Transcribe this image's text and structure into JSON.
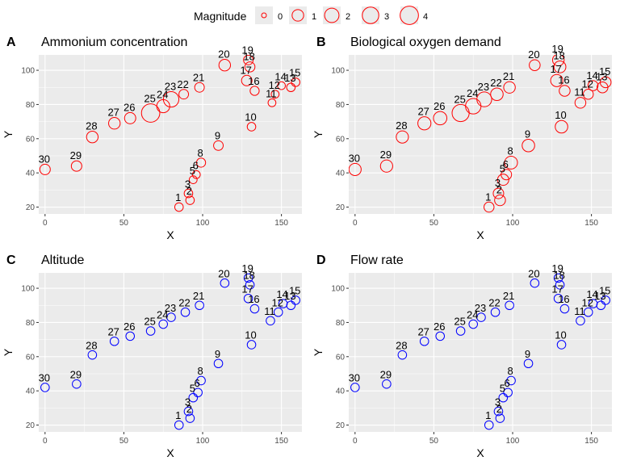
{
  "legend": {
    "title": "Magnitude",
    "entries": [
      {
        "label": "0",
        "value": 0
      },
      {
        "label": "1",
        "value": 1
      },
      {
        "label": "2",
        "value": 2
      },
      {
        "label": "3",
        "value": 3
      },
      {
        "label": "4",
        "value": 4
      }
    ],
    "placement": "top"
  },
  "colors": {
    "panel_bg": "#EBEBEB",
    "grid": "#FFFFFF",
    "red": "#FF0000",
    "blue": "#0000FF",
    "text": "#000000",
    "tick_text": "#4D4D4D"
  },
  "chart_data": [
    {
      "type": "scatter",
      "tag": "A",
      "title": "Ammonium concentration",
      "xlabel": "X",
      "ylabel": "Y",
      "xlim": [
        -4,
        163
      ],
      "ylim": [
        16,
        109
      ],
      "xticks": [
        0,
        50,
        100,
        150
      ],
      "yticks": [
        20,
        40,
        60,
        80,
        100
      ],
      "grid": true,
      "marker_color": "#FF0000",
      "points": [
        {
          "label": "1",
          "x": 85,
          "y": 20,
          "m": 0.3
        },
        {
          "label": "2",
          "x": 92,
          "y": 24,
          "m": 0.3
        },
        {
          "label": "3",
          "x": 91,
          "y": 28,
          "m": 0.3
        },
        {
          "label": "5",
          "x": 94,
          "y": 36,
          "m": 0.2
        },
        {
          "label": "6",
          "x": 96,
          "y": 39,
          "m": 0.2
        },
        {
          "label": "8",
          "x": 99,
          "y": 46,
          "m": 0.4
        },
        {
          "label": "9",
          "x": 110,
          "y": 56,
          "m": 0.5
        },
        {
          "label": "10",
          "x": 131,
          "y": 67,
          "m": 0.3
        },
        {
          "label": "11",
          "x": 144,
          "y": 81,
          "m": 0.2
        },
        {
          "label": "12",
          "x": 146,
          "y": 86,
          "m": 0.2
        },
        {
          "label": "13",
          "x": 156,
          "y": 90,
          "m": 0.3
        },
        {
          "label": "14",
          "x": 150,
          "y": 91,
          "m": 0.2
        },
        {
          "label": "15",
          "x": 159,
          "y": 93,
          "m": 0.3
        },
        {
          "label": "16",
          "x": 133,
          "y": 88,
          "m": 0.4
        },
        {
          "label": "17",
          "x": 128,
          "y": 94,
          "m": 0.7
        },
        {
          "label": "18",
          "x": 130,
          "y": 102,
          "m": 0.6
        },
        {
          "label": "19",
          "x": 129,
          "y": 106,
          "m": 0.5
        },
        {
          "label": "20",
          "x": 114,
          "y": 103,
          "m": 1.0
        },
        {
          "label": "21",
          "x": 98,
          "y": 90,
          "m": 0.5
        },
        {
          "label": "22",
          "x": 88,
          "y": 86,
          "m": 0.5
        },
        {
          "label": "23",
          "x": 80,
          "y": 83,
          "m": 2.5
        },
        {
          "label": "24",
          "x": 75,
          "y": 79,
          "m": 1.5
        },
        {
          "label": "25",
          "x": 67,
          "y": 75,
          "m": 4.0
        },
        {
          "label": "26",
          "x": 54,
          "y": 72,
          "m": 0.9
        },
        {
          "label": "27",
          "x": 44,
          "y": 69,
          "m": 1.0
        },
        {
          "label": "28",
          "x": 30,
          "y": 61,
          "m": 1.0
        },
        {
          "label": "29",
          "x": 20,
          "y": 44,
          "m": 0.7
        },
        {
          "label": "30",
          "x": 0,
          "y": 42,
          "m": 0.7
        }
      ]
    },
    {
      "type": "scatter",
      "tag": "B",
      "title": "Biological oxygen demand",
      "xlabel": "X",
      "ylabel": "Y",
      "xlim": [
        -4,
        163
      ],
      "ylim": [
        16,
        109
      ],
      "xticks": [
        0,
        50,
        100,
        150
      ],
      "yticks": [
        20,
        40,
        60,
        80,
        100
      ],
      "grid": true,
      "marker_color": "#FF0000",
      "points": [
        {
          "label": "1",
          "x": 85,
          "y": 20,
          "m": 0.6
        },
        {
          "label": "2",
          "x": 92,
          "y": 24,
          "m": 0.8
        },
        {
          "label": "3",
          "x": 91,
          "y": 28,
          "m": 0.7
        },
        {
          "label": "5",
          "x": 94,
          "y": 36,
          "m": 0.9
        },
        {
          "label": "6",
          "x": 96,
          "y": 39,
          "m": 0.7
        },
        {
          "label": "8",
          "x": 99,
          "y": 46,
          "m": 1.4
        },
        {
          "label": "9",
          "x": 110,
          "y": 56,
          "m": 1.3
        },
        {
          "label": "10",
          "x": 131,
          "y": 67,
          "m": 1.3
        },
        {
          "label": "11",
          "x": 143,
          "y": 81,
          "m": 0.8
        },
        {
          "label": "12",
          "x": 148,
          "y": 86,
          "m": 0.6
        },
        {
          "label": "13",
          "x": 157,
          "y": 90,
          "m": 0.8
        },
        {
          "label": "14",
          "x": 151,
          "y": 91,
          "m": 0.6
        },
        {
          "label": "15",
          "x": 159,
          "y": 93,
          "m": 0.8
        },
        {
          "label": "16",
          "x": 133,
          "y": 88,
          "m": 0.8
        },
        {
          "label": "17",
          "x": 128,
          "y": 94,
          "m": 1.2
        },
        {
          "label": "18",
          "x": 130,
          "y": 102,
          "m": 1.1
        },
        {
          "label": "19",
          "x": 129,
          "y": 106,
          "m": 1.0
        },
        {
          "label": "20",
          "x": 114,
          "y": 103,
          "m": 0.8
        },
        {
          "label": "21",
          "x": 98,
          "y": 90,
          "m": 1.0
        },
        {
          "label": "22",
          "x": 90,
          "y": 86,
          "m": 1.3
        },
        {
          "label": "23",
          "x": 82,
          "y": 83,
          "m": 2.2
        },
        {
          "label": "24",
          "x": 75,
          "y": 79,
          "m": 2.5
        },
        {
          "label": "25",
          "x": 67,
          "y": 75,
          "m": 3.3
        },
        {
          "label": "26",
          "x": 54,
          "y": 72,
          "m": 1.6
        },
        {
          "label": "27",
          "x": 44,
          "y": 69,
          "m": 1.5
        },
        {
          "label": "28",
          "x": 30,
          "y": 61,
          "m": 1.2
        },
        {
          "label": "29",
          "x": 20,
          "y": 44,
          "m": 1.2
        },
        {
          "label": "30",
          "x": 0,
          "y": 42,
          "m": 1.2
        }
      ]
    },
    {
      "type": "scatter",
      "tag": "C",
      "title": "Altitude",
      "xlabel": "X",
      "ylabel": "Y",
      "xlim": [
        -4,
        163
      ],
      "ylim": [
        16,
        109
      ],
      "xticks": [
        0,
        50,
        100,
        150
      ],
      "yticks": [
        20,
        40,
        60,
        80,
        100
      ],
      "grid": true,
      "marker_color": "#0000FF",
      "points": [
        {
          "label": "1",
          "x": 85,
          "y": 20,
          "m": 0.3
        },
        {
          "label": "2",
          "x": 92,
          "y": 24,
          "m": 0.3
        },
        {
          "label": "3",
          "x": 91,
          "y": 28,
          "m": 0.3
        },
        {
          "label": "5",
          "x": 94,
          "y": 36,
          "m": 0.3
        },
        {
          "label": "6",
          "x": 97,
          "y": 39,
          "m": 0.3
        },
        {
          "label": "8",
          "x": 99,
          "y": 46,
          "m": 0.3
        },
        {
          "label": "9",
          "x": 110,
          "y": 56,
          "m": 0.3
        },
        {
          "label": "10",
          "x": 131,
          "y": 67,
          "m": 0.3
        },
        {
          "label": "11",
          "x": 143,
          "y": 81,
          "m": 0.3
        },
        {
          "label": "12",
          "x": 148,
          "y": 86,
          "m": 0.3
        },
        {
          "label": "13",
          "x": 156,
          "y": 90,
          "m": 0.3
        },
        {
          "label": "14",
          "x": 151,
          "y": 91,
          "m": 0.3
        },
        {
          "label": "15",
          "x": 159,
          "y": 93,
          "m": 0.3
        },
        {
          "label": "16",
          "x": 133,
          "y": 88,
          "m": 0.3
        },
        {
          "label": "17",
          "x": 129,
          "y": 94,
          "m": 0.3
        },
        {
          "label": "18",
          "x": 130,
          "y": 102,
          "m": 0.3
        },
        {
          "label": "19",
          "x": 129,
          "y": 106,
          "m": 0.3
        },
        {
          "label": "20",
          "x": 114,
          "y": 103,
          "m": 0.3
        },
        {
          "label": "21",
          "x": 98,
          "y": 90,
          "m": 0.3
        },
        {
          "label": "22",
          "x": 89,
          "y": 86,
          "m": 0.3
        },
        {
          "label": "23",
          "x": 80,
          "y": 83,
          "m": 0.3
        },
        {
          "label": "24",
          "x": 75,
          "y": 79,
          "m": 0.3
        },
        {
          "label": "25",
          "x": 67,
          "y": 75,
          "m": 0.3
        },
        {
          "label": "26",
          "x": 54,
          "y": 72,
          "m": 0.3
        },
        {
          "label": "27",
          "x": 44,
          "y": 69,
          "m": 0.3
        },
        {
          "label": "28",
          "x": 30,
          "y": 61,
          "m": 0.3
        },
        {
          "label": "29",
          "x": 20,
          "y": 44,
          "m": 0.3
        },
        {
          "label": "30",
          "x": 0,
          "y": 42,
          "m": 0.3
        }
      ]
    },
    {
      "type": "scatter",
      "tag": "D",
      "title": "Flow rate",
      "xlabel": "X",
      "ylabel": "Y",
      "xlim": [
        -4,
        163
      ],
      "ylim": [
        16,
        109
      ],
      "xticks": [
        0,
        50,
        100,
        150
      ],
      "yticks": [
        20,
        40,
        60,
        80,
        100
      ],
      "grid": true,
      "marker_color": "#0000FF",
      "points": [
        {
          "label": "1",
          "x": 85,
          "y": 20,
          "m": 0.3
        },
        {
          "label": "2",
          "x": 92,
          "y": 24,
          "m": 0.3
        },
        {
          "label": "3",
          "x": 91,
          "y": 28,
          "m": 0.3
        },
        {
          "label": "5",
          "x": 94,
          "y": 36,
          "m": 0.3
        },
        {
          "label": "6",
          "x": 97,
          "y": 39,
          "m": 0.3
        },
        {
          "label": "8",
          "x": 99,
          "y": 46,
          "m": 0.3
        },
        {
          "label": "9",
          "x": 110,
          "y": 56,
          "m": 0.3
        },
        {
          "label": "10",
          "x": 131,
          "y": 67,
          "m": 0.3
        },
        {
          "label": "11",
          "x": 143,
          "y": 81,
          "m": 0.3
        },
        {
          "label": "12",
          "x": 148,
          "y": 86,
          "m": 0.3
        },
        {
          "label": "13",
          "x": 156,
          "y": 90,
          "m": 0.3
        },
        {
          "label": "14",
          "x": 151,
          "y": 91,
          "m": 0.3
        },
        {
          "label": "15",
          "x": 159,
          "y": 93,
          "m": 0.3
        },
        {
          "label": "16",
          "x": 133,
          "y": 88,
          "m": 0.3
        },
        {
          "label": "17",
          "x": 129,
          "y": 94,
          "m": 0.3
        },
        {
          "label": "18",
          "x": 130,
          "y": 102,
          "m": 0.3
        },
        {
          "label": "19",
          "x": 129,
          "y": 106,
          "m": 0.3
        },
        {
          "label": "20",
          "x": 114,
          "y": 103,
          "m": 0.3
        },
        {
          "label": "21",
          "x": 98,
          "y": 90,
          "m": 0.3
        },
        {
          "label": "22",
          "x": 89,
          "y": 86,
          "m": 0.3
        },
        {
          "label": "23",
          "x": 80,
          "y": 83,
          "m": 0.3
        },
        {
          "label": "24",
          "x": 75,
          "y": 79,
          "m": 0.3
        },
        {
          "label": "25",
          "x": 67,
          "y": 75,
          "m": 0.3
        },
        {
          "label": "26",
          "x": 54,
          "y": 72,
          "m": 0.3
        },
        {
          "label": "27",
          "x": 44,
          "y": 69,
          "m": 0.3
        },
        {
          "label": "28",
          "x": 30,
          "y": 61,
          "m": 0.3
        },
        {
          "label": "29",
          "x": 20,
          "y": 44,
          "m": 0.3
        },
        {
          "label": "30",
          "x": 0,
          "y": 42,
          "m": 0.3
        }
      ]
    }
  ]
}
